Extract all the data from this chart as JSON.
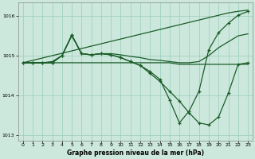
{
  "hours": [
    0,
    1,
    2,
    3,
    4,
    5,
    6,
    7,
    8,
    9,
    10,
    11,
    12,
    13,
    14,
    15,
    16,
    17,
    18,
    19,
    20,
    21,
    22,
    23
  ],
  "line_straight": [
    1014.82,
    1014.88,
    1014.94,
    1015.0,
    1015.06,
    1015.12,
    1015.18,
    1015.24,
    1015.3,
    1015.36,
    1015.42,
    1015.48,
    1015.54,
    1015.6,
    1015.66,
    1015.72,
    1015.78,
    1015.84,
    1015.9,
    1015.96,
    1016.02,
    1016.08,
    1016.12,
    1016.15
  ],
  "line_flat": [
    1014.82,
    1014.82,
    1014.82,
    1014.82,
    1014.82,
    1014.82,
    1014.82,
    1014.82,
    1014.82,
    1014.82,
    1014.82,
    1014.82,
    1014.82,
    1014.82,
    1014.82,
    1014.82,
    1014.78,
    1014.78,
    1014.78,
    1014.78,
    1014.78,
    1014.78,
    1014.78,
    1014.78
  ],
  "line_smooth": [
    1014.82,
    1014.82,
    1014.82,
    1014.85,
    1015.0,
    1015.5,
    1015.05,
    1015.02,
    1015.05,
    1015.05,
    1015.02,
    1014.98,
    1014.95,
    1014.9,
    1014.88,
    1014.85,
    1014.82,
    1014.82,
    1014.85,
    1015.0,
    1015.2,
    1015.35,
    1015.5,
    1015.55
  ],
  "line_main": [
    1014.82,
    1014.82,
    1014.82,
    1014.82,
    1015.0,
    1015.52,
    1015.05,
    1015.02,
    1015.05,
    1015.02,
    1014.95,
    1014.85,
    1014.75,
    1014.55,
    1014.35,
    1014.1,
    1013.85,
    1013.55,
    1013.3,
    1013.25,
    1013.45,
    1014.05,
    1014.78,
    1014.82
  ],
  "line_rise": [
    1014.82,
    1014.82,
    1014.82,
    1014.82,
    1015.0,
    1015.52,
    1015.05,
    1015.02,
    1015.05,
    1015.02,
    1014.95,
    1014.85,
    1014.75,
    1014.6,
    1014.4,
    1013.88,
    1013.3,
    1013.6,
    1014.1,
    1015.15,
    1015.58,
    1015.82,
    1016.02,
    1016.12
  ],
  "background_color": "#cce8dc",
  "grid_color": "#99ccbb",
  "line_color": "#1a5c28",
  "xlabel": "Graphe pression niveau de la mer (hPa)",
  "ylim": [
    1012.85,
    1016.35
  ],
  "yticks": [
    1013,
    1014,
    1015,
    1016
  ],
  "xticks": [
    0,
    1,
    2,
    3,
    4,
    5,
    6,
    7,
    8,
    9,
    10,
    11,
    12,
    13,
    14,
    15,
    16,
    17,
    18,
    19,
    20,
    21,
    22,
    23
  ]
}
